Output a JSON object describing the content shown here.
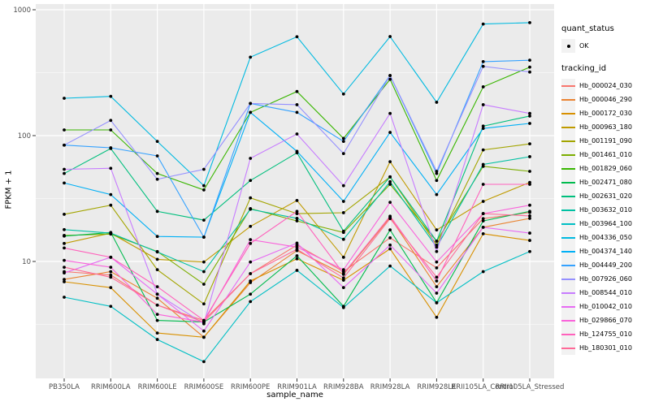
{
  "chart_data": {
    "type": "line",
    "xlabel": "sample_name",
    "ylabel": "FPKM + 1",
    "y_scale": "log10",
    "y_major_ticks": [
      10,
      100,
      1000
    ],
    "y_minor_ticks": [
      3.162,
      31.62,
      316.2
    ],
    "ylim": [
      1.25,
      1100
    ],
    "panel_bg": "#EBEBEB",
    "grid_color": "#FFFFFF",
    "tick_label_color": "#4D4D4D",
    "point_color": "#000000",
    "categories": [
      "PB350LA",
      "RRIM600LA",
      "RRIM600LE",
      "RRIM600SE",
      "RRIM600PE",
      "RRIM901LA",
      "RRIM928BA",
      "RRIM928LA",
      "RRIM928LE",
      "RRII105LA_Control",
      "RRII105LA_Stressed"
    ],
    "series": [
      {
        "name": "Hb_000024_030",
        "color": "#F8766D",
        "values": [
          8.3,
          7.8,
          4.5,
          3.4,
          8.0,
          13.5,
          8.3,
          15.4,
          8.9,
          21.9,
          24.5
        ]
      },
      {
        "name": "Hb_000046_290",
        "color": "#EA8331",
        "values": [
          7.2,
          8.3,
          5.1,
          2.5,
          6.8,
          12.2,
          7.9,
          22.4,
          6.3,
          18.7,
          22.0
        ]
      },
      {
        "name": "Hb_000172_030",
        "color": "#D89000",
        "values": [
          6.9,
          6.2,
          2.7,
          2.5,
          7.0,
          10.5,
          7.1,
          12.6,
          3.6,
          16.6,
          14.7
        ]
      },
      {
        "name": "Hb_000963_180",
        "color": "#C09B00",
        "values": [
          13.9,
          16.8,
          10.4,
          9.9,
          19.0,
          30.5,
          10.8,
          62.0,
          17.8,
          30.0,
          42.5
        ]
      },
      {
        "name": "Hb_001191_090",
        "color": "#A3A500",
        "values": [
          23.7,
          28.0,
          8.6,
          4.6,
          32.0,
          24.0,
          24.4,
          47.0,
          13.5,
          77.0,
          86.0
        ]
      },
      {
        "name": "Hb_001461_010",
        "color": "#7CAE00",
        "values": [
          16.1,
          16.5,
          12.0,
          6.6,
          26.3,
          21.0,
          17.0,
          41.0,
          14.5,
          57.0,
          52.0
        ]
      },
      {
        "name": "Hb_001829_060",
        "color": "#39B600",
        "values": [
          111,
          111,
          50,
          37,
          153,
          224,
          95,
          280,
          44,
          244,
          350
        ]
      },
      {
        "name": "Hb_002471_080",
        "color": "#00BB4E",
        "values": [
          15.9,
          17.0,
          3.4,
          3.3,
          5.5,
          11.1,
          4.4,
          17.8,
          4.7,
          21.0,
          25.0
        ]
      },
      {
        "name": "Hb_002631_020",
        "color": "#00BF7D",
        "values": [
          50,
          79,
          25,
          21.3,
          44,
          73,
          17.4,
          47,
          14.5,
          119,
          143
        ]
      },
      {
        "name": "Hb_003632_010",
        "color": "#00C1A3",
        "values": [
          17.9,
          16.8,
          11.9,
          8.3,
          26.0,
          22.0,
          15.0,
          43.0,
          13.0,
          59.0,
          68.0
        ]
      },
      {
        "name": "Hb_003964_100",
        "color": "#00BFC4",
        "values": [
          5.2,
          4.4,
          2.4,
          1.6,
          4.8,
          8.5,
          4.3,
          9.2,
          4.7,
          8.3,
          12.0
        ]
      },
      {
        "name": "Hb_004336_050",
        "color": "#00BAE0",
        "values": [
          198,
          205,
          90,
          40,
          420,
          610,
          214,
          612,
          184,
          770,
          790
        ]
      },
      {
        "name": "Hb_004374_140",
        "color": "#00B0F6",
        "values": [
          42,
          34,
          15.8,
          15.6,
          153,
          75,
          30,
          106,
          34,
          114,
          125
        ]
      },
      {
        "name": "Hb_004449_200",
        "color": "#35A2FF",
        "values": [
          84,
          80,
          69,
          15.6,
          180,
          153,
          90,
          300,
          50,
          387,
          397
        ]
      },
      {
        "name": "Hb_007926_060",
        "color": "#9590FF",
        "values": [
          84,
          132,
          45,
          54,
          180,
          176,
          72,
          300,
          52,
          355,
          320
        ]
      },
      {
        "name": "Hb_008544_010",
        "color": "#C77CFF",
        "values": [
          54,
          55,
          5.5,
          3.2,
          66,
          103,
          40,
          150,
          12.0,
          176,
          150
        ]
      },
      {
        "name": "Hb_010042_010",
        "color": "#E76BF3",
        "values": [
          8.1,
          10.8,
          5.5,
          2.8,
          9.9,
          14.0,
          6.2,
          13.5,
          5.6,
          18.7,
          16.8
        ]
      },
      {
        "name": "Hb_029866_070",
        "color": "#FA62DB",
        "values": [
          10.2,
          9.0,
          3.8,
          3.3,
          14.9,
          13.0,
          8.6,
          29.5,
          9.9,
          24.0,
          28.0
        ]
      },
      {
        "name": "Hb_124755_010",
        "color": "#FF62BC",
        "values": [
          12.8,
          10.8,
          6.3,
          3.4,
          13.9,
          25.0,
          8.0,
          22.9,
          7.0,
          41.0,
          41.0
        ]
      },
      {
        "name": "Hb_180301_010",
        "color": "#FF6A98",
        "values": [
          9.0,
          7.5,
          4.5,
          3.3,
          8.0,
          12.5,
          7.4,
          21.9,
          7.5,
          24.0,
          23.0
        ]
      }
    ],
    "legend_position": "right",
    "grid": true
  },
  "legend": {
    "quant_title": "quant_status",
    "quant_items": [
      {
        "label": "OK",
        "symbol": "point"
      }
    ],
    "tracking_title": "tracking_id"
  }
}
